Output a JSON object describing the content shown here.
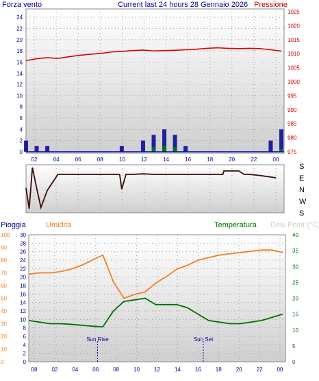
{
  "chart_data": [
    {
      "type": "line",
      "title": "Current last 24 hours 28 Gennaio 2026",
      "left_axis_label": "Forza vento",
      "right_axis_label": "Pressione",
      "left_ticks": [
        0,
        2,
        4,
        6,
        8,
        10,
        12,
        14,
        16,
        18,
        20,
        22,
        24
      ],
      "right_ticks": [
        975,
        980,
        985,
        990,
        995,
        1000,
        1005,
        1010,
        1015,
        1020,
        1025
      ],
      "x_ticks": [
        "02",
        "04",
        "06",
        "08",
        "10",
        "12",
        "14",
        "16",
        "18",
        "20",
        "22",
        "00"
      ],
      "ylim_left": [
        0,
        25
      ],
      "ylim_right": [
        975,
        1025
      ],
      "grid": true,
      "series": [
        {
          "name": "Pressione",
          "axis": "right",
          "color": "#dd0000",
          "x": [
            1,
            2,
            3,
            4,
            5,
            6,
            7,
            8,
            9,
            10,
            11,
            12,
            13,
            14,
            15,
            16,
            17,
            18,
            19,
            20,
            21,
            22,
            23,
            24,
            25
          ],
          "values": [
            1007.5,
            1008.2,
            1008.6,
            1008.3,
            1008.9,
            1009.4,
            1009.8,
            1010.1,
            1010.6,
            1010.8,
            1011.1,
            1011.3,
            1011.0,
            1011.1,
            1011.2,
            1011.4,
            1011.6,
            1011.9,
            1012.1,
            1011.9,
            1011.8,
            1011.9,
            1011.8,
            1011.4,
            1010.9
          ]
        },
        {
          "name": "Raffica",
          "axis": "left",
          "color": "#000099",
          "x": [
            1,
            2,
            3,
            4,
            5,
            6,
            7,
            8,
            9,
            10,
            11,
            12,
            13,
            14,
            15,
            16,
            17,
            18,
            19,
            20,
            21,
            22,
            23,
            24,
            25
          ],
          "values": [
            2,
            1,
            1,
            0,
            0,
            0,
            0,
            0,
            0,
            1,
            0,
            2,
            3,
            4,
            3,
            1,
            0,
            0,
            0,
            0,
            0,
            0,
            0,
            2,
            4
          ]
        },
        {
          "name": "Vento medio",
          "axis": "left",
          "color": "#008000",
          "x": [
            1,
            2,
            3,
            4,
            5,
            6,
            7,
            8,
            9,
            10,
            11,
            12,
            13,
            14,
            15,
            16,
            17,
            18,
            19,
            20,
            21,
            22,
            23,
            24,
            25
          ],
          "values": [
            0,
            0,
            0,
            0,
            0,
            0,
            0,
            0,
            0,
            0,
            0,
            0,
            0.8,
            1,
            0.8,
            0,
            0,
            0,
            0,
            0,
            0,
            0,
            0,
            0,
            0.5
          ]
        }
      ]
    },
    {
      "type": "line",
      "right_labels": [
        "S",
        "E",
        "N",
        "W",
        "S"
      ],
      "x_ticks": [
        "02",
        "04",
        "06",
        "08",
        "10",
        "12",
        "14",
        "16",
        "18",
        "20",
        "22",
        "00"
      ],
      "grid": true,
      "series": [
        {
          "name": "Direzione",
          "color": "#3a0a0a",
          "x": [
            1,
            1.3,
            1.6,
            2,
            2.4,
            3,
            4,
            6,
            8,
            9.8,
            10,
            10.4,
            11,
            12,
            13,
            14,
            16,
            18,
            19.5,
            19.6,
            21,
            21.5,
            22,
            23,
            24.5
          ],
          "values": [
            180,
            360,
            0,
            180,
            350,
            200,
            60,
            60,
            60,
            60,
            190,
            60,
            60,
            55,
            60,
            60,
            60,
            60,
            60,
            30,
            30,
            60,
            60,
            70,
            90
          ]
        }
      ]
    },
    {
      "type": "line",
      "labels": {
        "pioggia": "Pioggia",
        "umidita": "Umidita",
        "temperatura": "Temperatura",
        "dew": "Dew Point (°C)"
      },
      "rain_ticks": [
        0,
        10,
        20,
        30,
        40,
        50,
        60,
        70,
        80,
        90,
        100
      ],
      "hum_ticks": [
        0,
        2,
        4,
        6,
        8,
        10,
        12,
        14,
        16,
        18,
        20,
        22,
        24,
        26,
        28,
        30
      ],
      "temp_ticks": [
        0,
        5,
        10,
        15,
        20,
        25,
        30,
        35,
        40
      ],
      "x_ticks": [
        "08",
        "02",
        "04",
        "06",
        "08",
        "10",
        "12",
        "14",
        "16",
        "18",
        "20",
        "22",
        "00"
      ],
      "annotations": [
        "Sun Rise",
        "Sun Set"
      ],
      "grid": true,
      "series": [
        {
          "name": "Umidita",
          "color": "#f08020",
          "x": [
            1,
            2,
            3,
            4,
            5,
            6,
            7,
            8,
            9,
            10,
            11,
            12,
            13,
            14,
            15,
            16,
            17,
            18,
            19,
            20,
            21,
            22,
            23,
            24,
            25
          ],
          "values": [
            69,
            70,
            70,
            71,
            73,
            76,
            80,
            84,
            63,
            50,
            53,
            55,
            62,
            67,
            73,
            76,
            80,
            82,
            84,
            85,
            86,
            87,
            88,
            88,
            86
          ]
        },
        {
          "name": "Temperatura",
          "color": "#007000",
          "x": [
            1,
            2,
            3,
            4,
            5,
            6,
            7,
            8,
            9,
            10,
            11,
            12,
            13,
            14,
            15,
            16,
            17,
            18,
            19,
            20,
            21,
            22,
            23,
            24,
            25
          ],
          "values": [
            8,
            7.5,
            7,
            7,
            6.8,
            6.5,
            6.2,
            6,
            11,
            14,
            14.5,
            15,
            13,
            13,
            13,
            12,
            10,
            8,
            7.5,
            7,
            7,
            7.5,
            8,
            9,
            10
          ]
        },
        {
          "name": "Dew Point",
          "color": "#d8d8d8",
          "x": [
            1,
            2,
            3,
            4,
            5,
            6,
            7,
            8,
            9,
            10,
            11,
            12,
            13,
            14,
            15,
            16,
            17,
            18,
            19,
            20,
            21,
            22,
            23,
            24,
            25
          ],
          "values": [
            2.5,
            2.2,
            1.8,
            1.5,
            1.3,
            1.2,
            1.3,
            1.8,
            2.6,
            4,
            4.8,
            5,
            4.5,
            4.6,
            5,
            5.3,
            5.2,
            5,
            5.2,
            5.5,
            5.8,
            6.2,
            6.5,
            6.8,
            6.8
          ]
        }
      ]
    }
  ]
}
